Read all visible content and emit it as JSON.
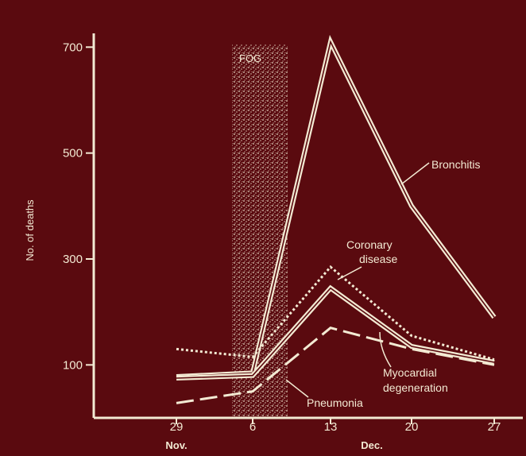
{
  "colors": {
    "background": "#5a0a0f",
    "ink": "#f3ead3"
  },
  "chart_data": {
    "type": "line",
    "title": "",
    "xlabel": "",
    "ylabel": "No. of deaths",
    "x": [
      29,
      6,
      13,
      20,
      27
    ],
    "x_tick_labels": [
      "29",
      "6",
      "13",
      "20",
      "27"
    ],
    "x_group_labels": [
      "Nov.",
      "Dec."
    ],
    "y_ticks": [
      100,
      300,
      500,
      700
    ],
    "y_tick_labels": [
      "100",
      "300",
      "500",
      "700"
    ],
    "ylim": [
      0,
      750
    ],
    "grid": false,
    "fog_label": "FOG",
    "series": [
      {
        "name": "Bronchitis",
        "style": "double-solid",
        "values": [
          78,
          85,
          710,
          400,
          190
        ]
      },
      {
        "name": "Coronary disease",
        "display_lines": [
          "Coronary",
          "disease"
        ],
        "style": "dotted",
        "values": [
          130,
          115,
          285,
          155,
          110
        ]
      },
      {
        "name": "Myocardial degeneration",
        "display_lines": [
          "Myocardial",
          "degeneration"
        ],
        "style": "double-solid",
        "values": [
          75,
          80,
          245,
          135,
          105
        ]
      },
      {
        "name": "Pneumonia",
        "style": "dashed",
        "values": [
          28,
          50,
          170,
          130,
          100
        ]
      }
    ]
  }
}
